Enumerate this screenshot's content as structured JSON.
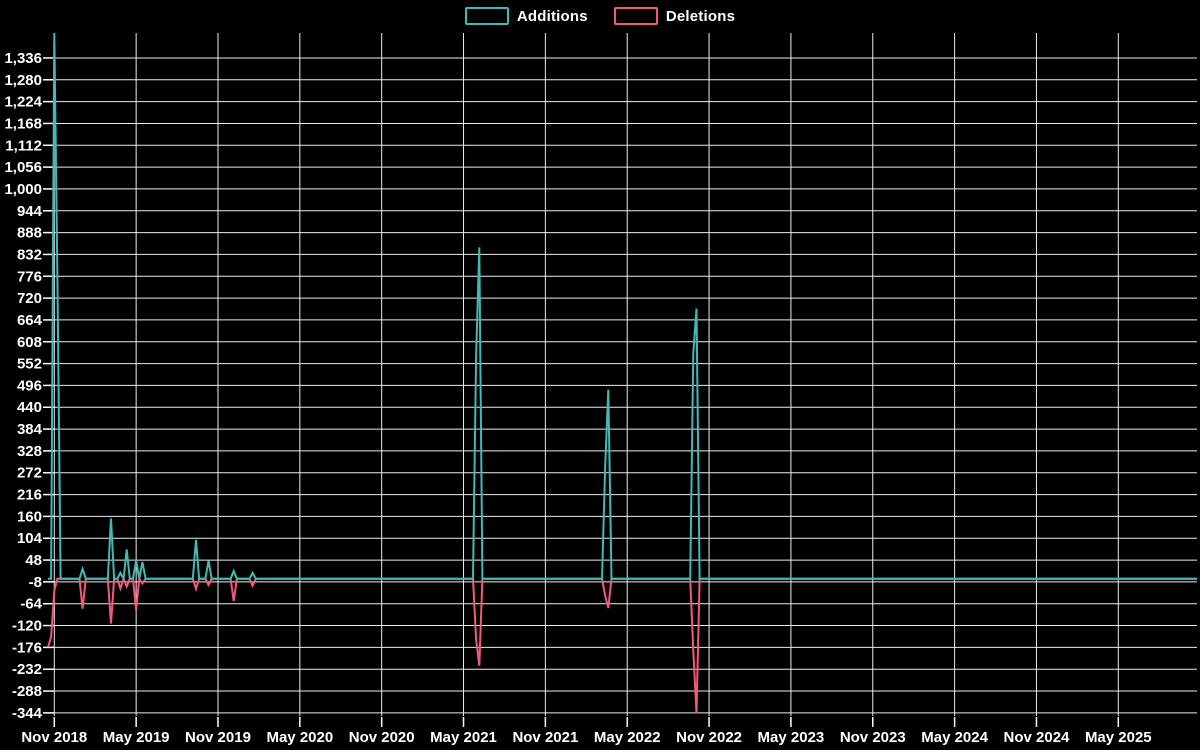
{
  "legend": {
    "additions_label": "Additions",
    "deletions_label": "Deletions"
  },
  "colors": {
    "additions": "#44b8b8",
    "deletions": "#f4597b",
    "grid": "#ececec",
    "background": "#000000",
    "text": "#ffffff"
  },
  "chart_data": {
    "type": "line",
    "title": "",
    "xlabel": "",
    "ylabel": "",
    "grid": true,
    "legend_position": "top-center",
    "x_tick_labels": [
      "Nov 2018",
      "May 2019",
      "Nov 2019",
      "May 2020",
      "Nov 2020",
      "May 2021",
      "Nov 2021",
      "May 2022",
      "Nov 2022",
      "May 2023",
      "Nov 2023",
      "May 2024",
      "Nov 2024",
      "May 2025"
    ],
    "x_tick_weeks": [
      2,
      28,
      54,
      80,
      106,
      132,
      158,
      184,
      210,
      236,
      262,
      288,
      314,
      340
    ],
    "weeks_total": 366,
    "y_ticks": [
      1336,
      1280,
      1224,
      1168,
      1112,
      1056,
      1000,
      944,
      888,
      832,
      776,
      720,
      664,
      608,
      552,
      496,
      440,
      384,
      328,
      272,
      216,
      160,
      104,
      48,
      -8,
      -64,
      -120,
      -176,
      -232,
      -288,
      -344
    ],
    "y_max": 1400,
    "y_min": -352,
    "baseline_value": 0,
    "series": [
      {
        "name": "Additions",
        "color": "#44b8b8",
        "default": 0,
        "points": [
          {
            "week": 2,
            "value": 1400
          },
          {
            "week": 3,
            "value": 776
          },
          {
            "week": 11,
            "value": 25
          },
          {
            "week": 20,
            "value": 155
          },
          {
            "week": 23,
            "value": 15
          },
          {
            "week": 25,
            "value": 75
          },
          {
            "week": 28,
            "value": 48
          },
          {
            "week": 30,
            "value": 43
          },
          {
            "week": 47,
            "value": 100
          },
          {
            "week": 51,
            "value": 46
          },
          {
            "week": 59,
            "value": 20
          },
          {
            "week": 65,
            "value": 15
          },
          {
            "week": 136,
            "value": 570
          },
          {
            "week": 137,
            "value": 850
          },
          {
            "week": 177,
            "value": 290
          },
          {
            "week": 178,
            "value": 485
          },
          {
            "week": 205,
            "value": 580
          },
          {
            "week": 206,
            "value": 693
          }
        ]
      },
      {
        "name": "Deletions",
        "color": "#f4597b",
        "default": 0,
        "points": [
          {
            "week": 0,
            "value": -175
          },
          {
            "week": 1,
            "value": -150
          },
          {
            "week": 2,
            "value": -30
          },
          {
            "week": 11,
            "value": -77
          },
          {
            "week": 20,
            "value": -115
          },
          {
            "week": 23,
            "value": -25
          },
          {
            "week": 25,
            "value": -20
          },
          {
            "week": 28,
            "value": -80
          },
          {
            "week": 30,
            "value": -12
          },
          {
            "week": 47,
            "value": -26
          },
          {
            "week": 51,
            "value": -16
          },
          {
            "week": 59,
            "value": -57
          },
          {
            "week": 65,
            "value": -18
          },
          {
            "week": 136,
            "value": -155
          },
          {
            "week": 137,
            "value": -223
          },
          {
            "week": 177,
            "value": -44
          },
          {
            "week": 178,
            "value": -75
          },
          {
            "week": 205,
            "value": -185
          },
          {
            "week": 206,
            "value": -345
          }
        ]
      }
    ]
  }
}
